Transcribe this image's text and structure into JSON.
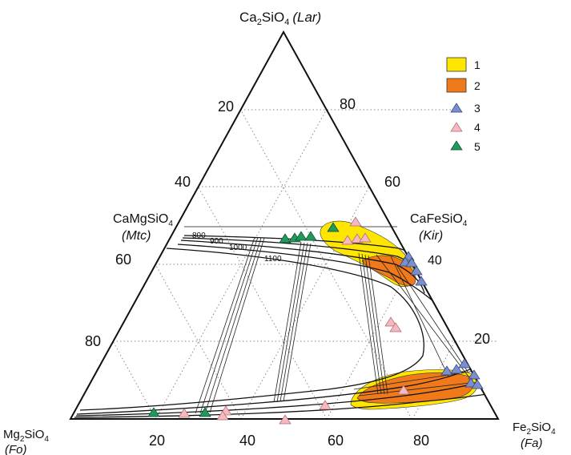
{
  "vertices": {
    "top": {
      "formula_main": "Ca",
      "formula_sub1": "2",
      "formula_mid": "SiO",
      "formula_sub2": "4",
      "abbr": "(Lar)"
    },
    "bottom_left": {
      "formula_main": "Mg",
      "formula_sub1": "2",
      "formula_mid": "SiO",
      "formula_sub2": "4",
      "abbr": "(Fo)"
    },
    "bottom_right": {
      "formula_main": "Fe",
      "formula_sub1": "2",
      "formula_mid": "SiO",
      "formula_sub2": "4",
      "abbr": "(Fa)"
    }
  },
  "midpoints": {
    "left": {
      "formula": "CaMgSiO",
      "sub": "4",
      "abbr": "(Mtc)"
    },
    "right": {
      "formula": "CaFeSiO",
      "sub": "4",
      "abbr": "(Kir)"
    }
  },
  "ticks": {
    "left": [
      "20",
      "40",
      "60",
      "80"
    ],
    "right": [
      "80",
      "60",
      "40",
      "20"
    ],
    "bottom": [
      "20",
      "40",
      "60",
      "80"
    ]
  },
  "isotherms": [
    "800",
    "900",
    "1000",
    "1100"
  ],
  "legend": [
    {
      "label": "1",
      "kind": "field",
      "color": "#ffe600"
    },
    {
      "label": "2",
      "kind": "field",
      "color": "#f07a1a"
    },
    {
      "label": "3",
      "kind": "triangle",
      "color": "#7b8fcc"
    },
    {
      "label": "4",
      "kind": "triangle",
      "color": "#f7b8c0"
    },
    {
      "label": "5",
      "kind": "triangle",
      "color": "#1f9a5a"
    }
  ]
}
